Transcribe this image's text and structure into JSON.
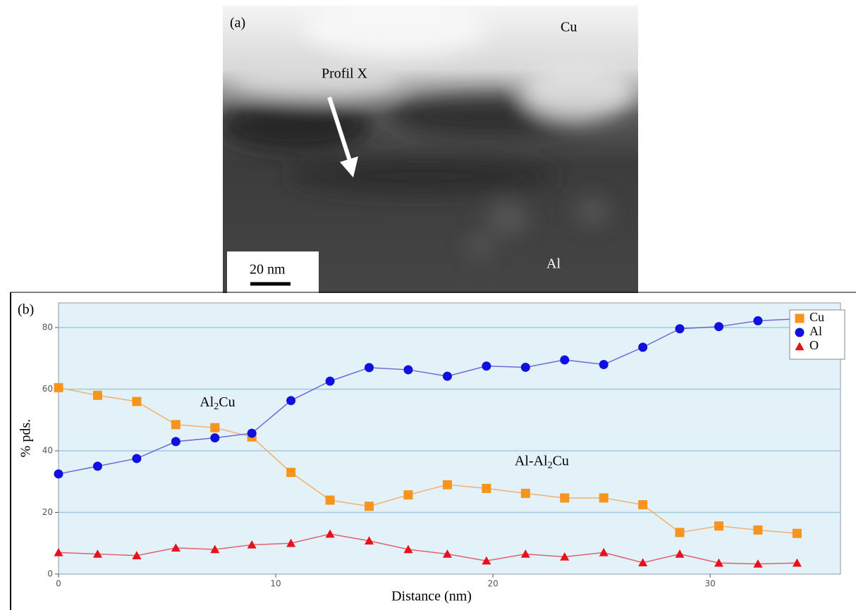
{
  "panel_a": {
    "label": "(a)",
    "top_label": "Cu",
    "profile_label": "Profil X",
    "scale_label": "20 nm",
    "bottom_label": "Al"
  },
  "chart_data": {
    "type": "line",
    "panel_label": "(b)",
    "x_label": "Distance (nm)",
    "y_label": "% pds.",
    "x": [
      0,
      1.8,
      3.6,
      5.4,
      7.2,
      8.9,
      10.7,
      12.5,
      14.3,
      16.1,
      17.9,
      19.7,
      21.5,
      23.3,
      25.1,
      26.9,
      28.6,
      30.4,
      32.2,
      34.0
    ],
    "series": [
      {
        "name": "Cu",
        "color": "#f7941d",
        "line_color": "#f0b070",
        "marker": "square",
        "values": [
          60.5,
          58,
          56,
          48.5,
          47.5,
          44.5,
          33,
          24,
          22,
          25.7,
          29,
          27.8,
          26.2,
          24.7,
          24.7,
          22.5,
          13.5,
          15.6,
          14.3,
          13.2
        ]
      },
      {
        "name": "Al",
        "color": "#1010e0",
        "line_color": "#6a6ad8",
        "marker": "circle",
        "values": [
          32.5,
          35,
          37.5,
          43,
          44.2,
          45.7,
          56.3,
          62.6,
          67,
          66.3,
          64.2,
          67.5,
          67.1,
          69.5,
          68,
          73.6,
          79.6,
          80.3,
          82.2,
          82.8
        ]
      },
      {
        "name": "O",
        "color": "#e8101a",
        "line_color": "#e06070",
        "marker": "triangle",
        "values": [
          7,
          6.5,
          6,
          8.5,
          8,
          9.5,
          10,
          13,
          10.8,
          8,
          6.5,
          4.3,
          6.5,
          5.6,
          7,
          3.7,
          6.5,
          3.6,
          3.3,
          3.6
        ]
      }
    ],
    "annotations": [
      {
        "parts": [
          "Al",
          "2",
          "Cu"
        ],
        "x": 6.5,
        "y": 55.5
      },
      {
        "parts": [
          "Al-Al",
          "2",
          "Cu"
        ],
        "x": 21,
        "y": 36.5
      }
    ],
    "xlim": [
      0,
      36
    ],
    "ylim": [
      0,
      88
    ],
    "xticks": [
      0,
      10,
      20,
      30
    ],
    "yticks": [
      0,
      20,
      40,
      60,
      80
    ],
    "grid": true,
    "legend": "upper right"
  }
}
